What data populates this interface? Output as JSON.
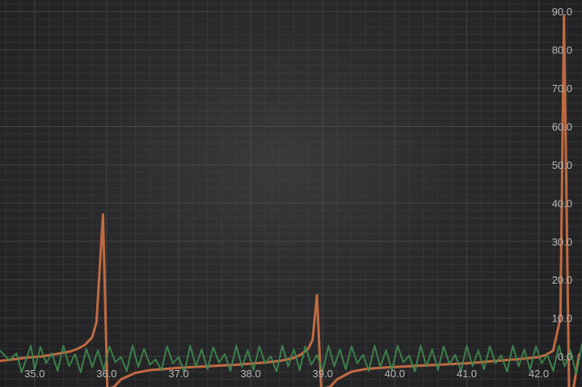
{
  "chart_data": {
    "type": "line",
    "title": "",
    "xlabel": "",
    "ylabel": "",
    "xlim": [
      34.52,
      42.6
    ],
    "ylim": [
      -8.0,
      93.0
    ],
    "grid": true,
    "legend": "none",
    "x_ticks": [
      "35.0",
      "36.0",
      "37.0",
      "38.0",
      "39.0",
      "40.0",
      "41.0",
      "42.0"
    ],
    "y_ticks": [
      "0.0",
      "10.0",
      "20.0",
      "30.0",
      "40.0",
      "50.0",
      "60.0",
      "70.0",
      "80.0",
      "90.0"
    ],
    "series": [
      {
        "color": "#c86f42",
        "x": [
          34.52,
          34.7,
          34.9,
          35.1,
          35.3,
          35.5,
          35.6,
          35.7,
          35.8,
          35.86,
          35.95,
          36.01,
          36.1,
          36.2,
          36.4,
          36.6,
          36.8,
          37.0,
          37.2,
          37.4,
          37.6,
          37.8,
          38.0,
          38.2,
          38.4,
          38.6,
          38.7,
          38.8,
          38.86,
          38.92,
          38.98,
          39.1,
          39.2,
          39.4,
          39.6,
          39.8,
          40.0,
          40.2,
          40.4,
          40.6,
          40.8,
          41.0,
          41.2,
          41.4,
          41.6,
          41.8,
          42.0,
          42.1,
          42.2,
          42.3,
          42.35,
          42.42,
          42.48,
          42.56
        ],
        "y": [
          -1.2,
          -0.8,
          -0.3,
          0.0,
          0.6,
          1.3,
          2.0,
          3.0,
          5.0,
          9.0,
          37.0,
          -8.5,
          -8.0,
          -6.0,
          -4.3,
          -3.6,
          -3.3,
          -3.0,
          -2.8,
          -2.6,
          -2.4,
          -2.2,
          -1.9,
          -1.6,
          -1.2,
          -0.4,
          0.5,
          2.0,
          4.3,
          16.0,
          -8.5,
          -8.0,
          -6.0,
          -4.0,
          -3.3,
          -3.0,
          -2.8,
          -2.6,
          -2.4,
          -2.2,
          -2.0,
          -1.8,
          -1.5,
          -1.2,
          -0.9,
          -0.6,
          -0.2,
          0.4,
          1.5,
          10.0,
          89.0,
          -8.5,
          -8.5,
          0.5
        ]
      },
      {
        "color": "#3f8a4e",
        "x": [
          34.52,
          34.65,
          34.75,
          34.82,
          34.95,
          35.0,
          35.08,
          35.16,
          35.24,
          35.32,
          35.4,
          35.48,
          35.56,
          35.64,
          35.72,
          35.8,
          35.88,
          35.96,
          36.04,
          36.12,
          36.2,
          36.28,
          36.36,
          36.44,
          36.52,
          36.6,
          36.68,
          36.76,
          36.84,
          36.92,
          37.0,
          37.08,
          37.16,
          37.24,
          37.32,
          37.4,
          37.48,
          37.56,
          37.64,
          37.72,
          37.8,
          37.88,
          37.96,
          38.04,
          38.12,
          38.2,
          38.28,
          38.36,
          38.44,
          38.52,
          38.6,
          38.68,
          38.76,
          38.84,
          38.92,
          39.0,
          39.08,
          39.16,
          39.24,
          39.32,
          39.4,
          39.48,
          39.56,
          39.64,
          39.72,
          39.8,
          39.88,
          39.96,
          40.04,
          40.12,
          40.2,
          40.28,
          40.36,
          40.44,
          40.52,
          40.6,
          40.68,
          40.76,
          40.84,
          40.92,
          41.0,
          41.08,
          41.16,
          41.24,
          41.32,
          41.4,
          41.48,
          41.56,
          41.64,
          41.72,
          41.8,
          41.88,
          41.96,
          42.04,
          42.12,
          42.2,
          42.28,
          42.36,
          42.44,
          42.52,
          42.6
        ],
        "y": [
          1.5,
          -1.0,
          0.8,
          -4.2,
          2.8,
          -3.5,
          2.5,
          -1.8,
          0.8,
          -3.8,
          2.8,
          -2.6,
          0.6,
          -4.2,
          2.0,
          -2.8,
          1.6,
          -3.6,
          2.6,
          -1.5,
          -0.2,
          -3.8,
          2.8,
          -2.8,
          2.0,
          -2.2,
          -0.8,
          -3.6,
          2.6,
          -1.8,
          -0.2,
          -4.2,
          2.8,
          -2.6,
          1.8,
          -3.4,
          2.4,
          -1.6,
          0.6,
          -3.8,
          2.8,
          -2.8,
          1.6,
          -3.6,
          2.6,
          -1.8,
          0.0,
          -4.0,
          2.8,
          -2.6,
          1.8,
          -3.6,
          2.6,
          -2.2,
          0.4,
          -4.0,
          2.8,
          -2.6,
          1.8,
          -3.4,
          2.6,
          -1.8,
          0.4,
          -3.8,
          2.8,
          -2.8,
          1.6,
          -3.6,
          2.8,
          -1.6,
          0.2,
          -4.0,
          2.8,
          -2.6,
          1.8,
          -3.6,
          2.6,
          -2.0,
          0.4,
          -3.8,
          2.8,
          -2.6,
          1.6,
          -3.4,
          2.6,
          -1.8,
          0.2,
          -4.0,
          2.8,
          -2.6,
          1.8,
          -3.6,
          2.6,
          -1.8,
          0.4,
          -3.8,
          2.8,
          -2.6,
          1.6,
          -4.6,
          3.2
        ]
      }
    ]
  }
}
